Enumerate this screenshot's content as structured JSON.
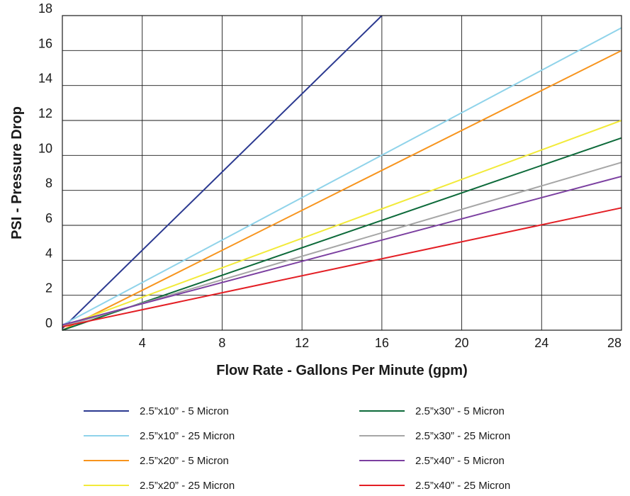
{
  "chart_data": {
    "type": "line",
    "xlabel": "Flow Rate - Gallons Per Minute (gpm)",
    "ylabel": "PSI - Pressure Drop",
    "xlim": [
      0,
      28
    ],
    "ylim": [
      0,
      18
    ],
    "x_ticks": [
      4,
      8,
      12,
      16,
      20,
      24,
      28
    ],
    "y_ticks": [
      0,
      2,
      4,
      6,
      8,
      10,
      12,
      14,
      16,
      18
    ],
    "grid": true,
    "legend_position": "bottom",
    "series": [
      {
        "name": "2.5”x10” - 5 Micron",
        "color": "#2b3990",
        "x": [
          0,
          16
        ],
        "y": [
          0.1,
          18.0
        ]
      },
      {
        "name": "2.5”x10” - 25 Micron",
        "color": "#8fd3ea",
        "x": [
          0,
          28
        ],
        "y": [
          0.3,
          17.3
        ]
      },
      {
        "name": "2.5”x20” - 5 Micron",
        "color": "#f7941d",
        "x": [
          0,
          28
        ],
        "y": [
          0.0,
          16.0
        ]
      },
      {
        "name": "2.5”x20” - 25 Micron",
        "color": "#f2ea3a",
        "x": [
          0,
          28
        ],
        "y": [
          0.2,
          12.0
        ]
      },
      {
        "name": "2.5”x30” - 5 Micron",
        "color": "#0d6a3a",
        "x": [
          0,
          28
        ],
        "y": [
          0.0,
          11.0
        ]
      },
      {
        "name": "2.5”x30” - 25 Micron",
        "color": "#a6a6a6",
        "x": [
          0,
          28
        ],
        "y": [
          0.2,
          9.6
        ]
      },
      {
        "name": "2.5”x40” - 5 Micron",
        "color": "#7b3fa0",
        "x": [
          0,
          28
        ],
        "y": [
          0.3,
          8.8
        ]
      },
      {
        "name": "2.5”x40” - 25 Micron",
        "color": "#e31e24",
        "x": [
          0,
          28
        ],
        "y": [
          0.2,
          7.0
        ]
      }
    ]
  }
}
